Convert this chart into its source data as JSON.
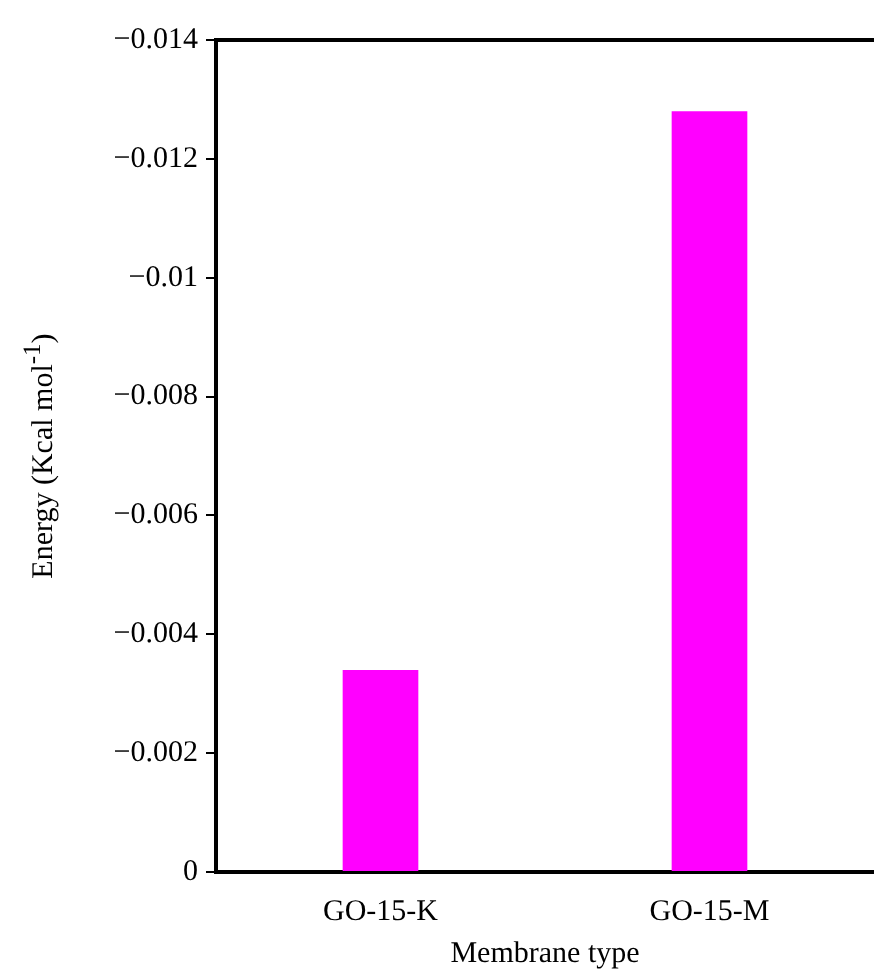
{
  "chart_data": {
    "type": "bar",
    "xlabel": "Membrane type",
    "ylabel": "Energy (Kcal mol$^{-1}$)",
    "categories": [
      "GO-15-K",
      "GO-15-M"
    ],
    "values": [
      -0.0034,
      -0.0128
    ],
    "color": "#ff00ff",
    "ylim": [
      0,
      -0.014
    ],
    "yticks": [
      0,
      {
        "value": -0.002,
        "label": "−0.002"
      },
      {
        "value": -0.004,
        "label": "−0.004"
      },
      {
        "value": -0.006,
        "label": "−0.006"
      },
      {
        "value": -0.008,
        "label": "−0.008"
      },
      {
        "value": -0.01,
        "label": "−0.01"
      },
      {
        "value": -0.012,
        "label": "−0.012"
      },
      {
        "value": -0.014,
        "label": "−0.014"
      }
    ]
  }
}
